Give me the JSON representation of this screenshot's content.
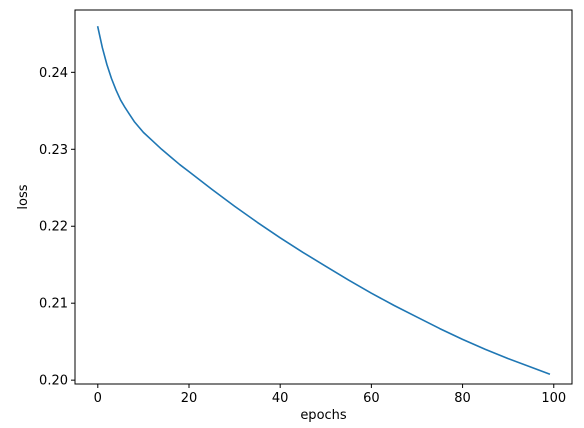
{
  "chart_data": {
    "type": "line",
    "title": "",
    "xlabel": "epochs",
    "ylabel": "loss",
    "xlim": [
      -5,
      104
    ],
    "ylim": [
      0.1995,
      0.2481
    ],
    "xticks": [
      0,
      20,
      40,
      60,
      80,
      100
    ],
    "yticks": [
      0.2,
      0.21,
      0.22,
      0.23,
      0.24
    ],
    "xtick_labels": [
      "0",
      "20",
      "40",
      "60",
      "80",
      "100"
    ],
    "ytick_labels": [
      "0.20",
      "0.21",
      "0.22",
      "0.23",
      "0.24"
    ],
    "grid": false,
    "series": [
      {
        "color": "#1f77b4",
        "x": [
          0,
          1,
          2,
          3,
          4,
          5,
          6,
          7,
          8,
          9,
          10,
          12,
          14,
          16,
          18,
          20,
          25,
          30,
          35,
          40,
          45,
          50,
          55,
          60,
          65,
          70,
          75,
          80,
          85,
          90,
          95,
          99
        ],
        "y": [
          0.2459,
          0.2432,
          0.241,
          0.2392,
          0.2377,
          0.2364,
          0.2354,
          0.2345,
          0.2336,
          0.2329,
          0.2322,
          0.2311,
          0.23,
          0.229,
          0.228,
          0.2271,
          0.2248,
          0.2226,
          0.2205,
          0.2185,
          0.2166,
          0.2148,
          0.213,
          0.2113,
          0.2097,
          0.2082,
          0.2067,
          0.2053,
          0.204,
          0.2028,
          0.2017,
          0.2008
        ]
      }
    ]
  }
}
